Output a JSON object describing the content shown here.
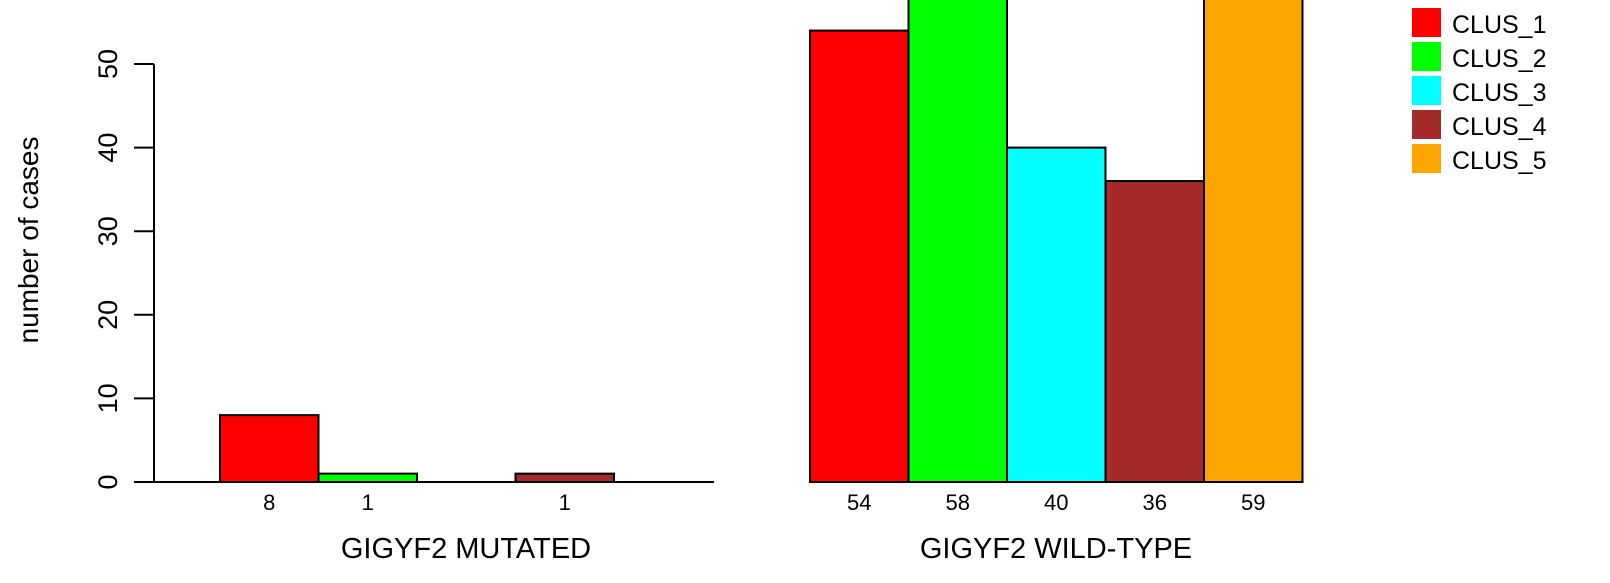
{
  "chart_data": {
    "type": "bar",
    "ylabel": "number of cases",
    "ylim": [
      0,
      50
    ],
    "yticks": [
      0,
      10,
      20,
      30,
      40,
      50
    ],
    "series": [
      {
        "name": "CLUS_1",
        "color": "#FF0000"
      },
      {
        "name": "CLUS_2",
        "color": "#00FF00"
      },
      {
        "name": "CLUS_3",
        "color": "#00FFFF"
      },
      {
        "name": "CLUS_4",
        "color": "#A52A2A"
      },
      {
        "name": "CLUS_5",
        "color": "#FFA500"
      }
    ],
    "groups": [
      {
        "label": "GIGYF2 MUTATED",
        "values": [
          8,
          1,
          0,
          1,
          0
        ],
        "value_labels": [
          "8",
          "1",
          "",
          "1",
          ""
        ]
      },
      {
        "label": "GIGYF2 WILD-TYPE",
        "values": [
          54,
          58,
          40,
          36,
          59
        ],
        "value_labels": [
          "54",
          "58",
          "40",
          "36",
          "59"
        ]
      }
    ],
    "legend": {
      "position": "top-right",
      "entries": [
        "CLUS_1",
        "CLUS_2",
        "CLUS_3",
        "CLUS_4",
        "CLUS_5"
      ]
    }
  }
}
